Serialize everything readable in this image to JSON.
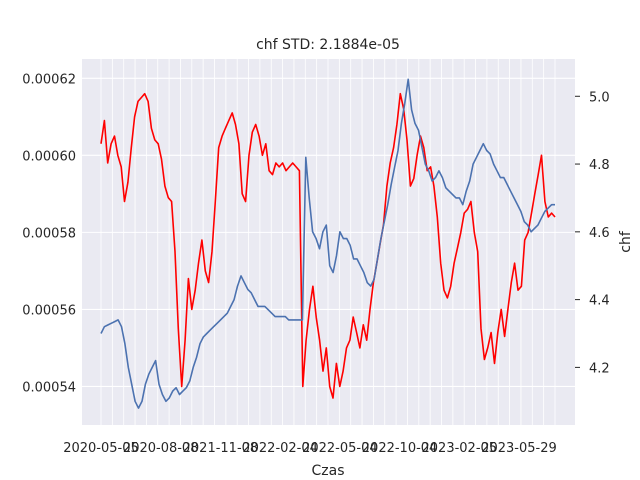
{
  "chart_data": {
    "type": "line",
    "title": "chf STD: 2.1884e-05",
    "xlabel": "Czas",
    "ylabel_left": "",
    "ylabel_right": "chf",
    "x_tick_labels": [
      "2020-05-05",
      "2020-08-08",
      "2021-11-08",
      "2022-02-04",
      "2022-05-04",
      "2022-10-04",
      "2023-02-05",
      "2023-05-29"
    ],
    "left_axis": {
      "ylim": [
        0.00053,
        0.000625
      ],
      "ticks": [
        0.00054,
        0.00056,
        0.00058,
        0.0006,
        0.00062
      ],
      "tick_labels": [
        "0.00054",
        "0.00056",
        "0.00058",
        "0.00060",
        "0.00062"
      ]
    },
    "right_axis": {
      "ylim": [
        4.03,
        5.11
      ],
      "ticks": [
        4.2,
        4.4,
        4.6,
        4.8,
        5.0
      ],
      "tick_labels": [
        "4.2",
        "4.4",
        "4.6",
        "4.8",
        "5.0"
      ]
    },
    "series": [
      {
        "name": "std",
        "axis": "left",
        "color": "#ff0000",
        "values": [
          0.000603,
          0.000609,
          0.000598,
          0.000603,
          0.000605,
          0.0006,
          0.000597,
          0.000588,
          0.000593,
          0.000602,
          0.00061,
          0.000614,
          0.000615,
          0.000616,
          0.000614,
          0.000607,
          0.000604,
          0.000603,
          0.000599,
          0.000592,
          0.000589,
          0.000588,
          0.000575,
          0.000555,
          0.00054,
          0.000552,
          0.000568,
          0.00056,
          0.000565,
          0.000572,
          0.000578,
          0.00057,
          0.000567,
          0.000575,
          0.000588,
          0.000602,
          0.000605,
          0.000607,
          0.000609,
          0.000611,
          0.000608,
          0.000603,
          0.00059,
          0.000588,
          0.0006,
          0.000606,
          0.000608,
          0.000605,
          0.0006,
          0.000603,
          0.000596,
          0.000595,
          0.000598,
          0.000597,
          0.000598,
          0.000596,
          0.000597,
          0.000598,
          0.000597,
          0.000596,
          0.00054,
          0.000552,
          0.00056,
          0.000566,
          0.000558,
          0.000552,
          0.000544,
          0.00055,
          0.00054,
          0.000537,
          0.000546,
          0.00054,
          0.000544,
          0.00055,
          0.000552,
          0.000558,
          0.000554,
          0.00055,
          0.000556,
          0.000552,
          0.00056,
          0.000567,
          0.000572,
          0.000577,
          0.000582,
          0.000592,
          0.000598,
          0.000602,
          0.000608,
          0.000616,
          0.000612,
          0.000604,
          0.000592,
          0.000594,
          0.0006,
          0.000605,
          0.000602,
          0.000596,
          0.000597,
          0.000592,
          0.000584,
          0.000572,
          0.000565,
          0.000563,
          0.000566,
          0.000572,
          0.000576,
          0.00058,
          0.000585,
          0.000586,
          0.000588,
          0.00058,
          0.000575,
          0.000555,
          0.000547,
          0.00055,
          0.000554,
          0.000546,
          0.000554,
          0.00056,
          0.000553,
          0.00056,
          0.000567,
          0.000572,
          0.000565,
          0.000566,
          0.000578,
          0.00058,
          0.000585,
          0.00059,
          0.000595,
          0.0006,
          0.000588,
          0.000584,
          0.000585,
          0.000584
        ]
      },
      {
        "name": "chf",
        "axis": "right",
        "color": "#4c72b0",
        "values": [
          4.3,
          4.32,
          4.325,
          4.33,
          4.335,
          4.34,
          4.32,
          4.27,
          4.2,
          4.15,
          4.1,
          4.08,
          4.1,
          4.15,
          4.18,
          4.2,
          4.22,
          4.15,
          4.12,
          4.1,
          4.11,
          4.13,
          4.14,
          4.12,
          4.13,
          4.14,
          4.16,
          4.2,
          4.23,
          4.27,
          4.29,
          4.3,
          4.31,
          4.32,
          4.33,
          4.34,
          4.35,
          4.36,
          4.38,
          4.4,
          4.44,
          4.47,
          4.45,
          4.43,
          4.42,
          4.4,
          4.38,
          4.38,
          4.38,
          4.37,
          4.36,
          4.35,
          4.35,
          4.35,
          4.35,
          4.34,
          4.34,
          4.34,
          4.34,
          4.34,
          4.82,
          4.7,
          4.6,
          4.58,
          4.55,
          4.6,
          4.62,
          4.5,
          4.48,
          4.53,
          4.6,
          4.58,
          4.58,
          4.56,
          4.52,
          4.52,
          4.5,
          4.48,
          4.45,
          4.44,
          4.46,
          4.52,
          4.58,
          4.63,
          4.68,
          4.74,
          4.79,
          4.84,
          4.92,
          4.98,
          5.05,
          4.96,
          4.92,
          4.9,
          4.85,
          4.8,
          4.78,
          4.75,
          4.76,
          4.78,
          4.76,
          4.73,
          4.72,
          4.71,
          4.7,
          4.7,
          4.68,
          4.72,
          4.75,
          4.8,
          4.82,
          4.84,
          4.86,
          4.84,
          4.83,
          4.8,
          4.78,
          4.76,
          4.76,
          4.74,
          4.72,
          4.7,
          4.68,
          4.66,
          4.63,
          4.62,
          4.6,
          4.61,
          4.62,
          4.64,
          4.66,
          4.67,
          4.68,
          4.68
        ]
      }
    ]
  }
}
